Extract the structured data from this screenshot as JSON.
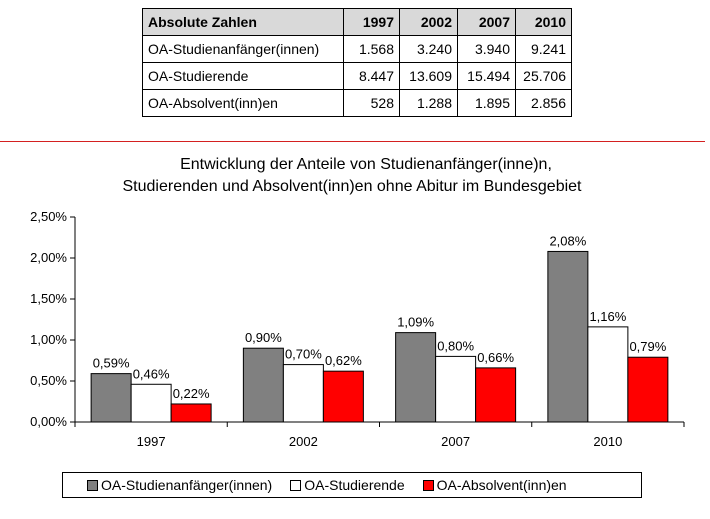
{
  "table": {
    "header": [
      "Absolute Zahlen",
      "1997",
      "2002",
      "2007",
      "2010"
    ],
    "rows": [
      {
        "label": "OA-Studienanfänger(innen)",
        "values": [
          "1.568",
          "3.240",
          "3.940",
          "9.241"
        ]
      },
      {
        "label": "OA-Studierende",
        "values": [
          "8.447",
          "13.609",
          "15.494",
          "25.706"
        ]
      },
      {
        "label": "OA-Absolvent(inn)en",
        "values": [
          "528",
          "1.288",
          "1.895",
          "2.856"
        ]
      }
    ]
  },
  "chart_data": {
    "type": "bar",
    "title": "Entwicklung der  Anteile von Studienanfänger(inne)n,",
    "subtitle": "Studierenden und Absolvent(inn)en ohne Abitur im Bundesgebiet",
    "categories": [
      "1997",
      "2002",
      "2007",
      "2010"
    ],
    "ylim": [
      0,
      2.5
    ],
    "yticks": [
      "0,00%",
      "0,50%",
      "1,00%",
      "1,50%",
      "2,00%",
      "2,50%"
    ],
    "grid": false,
    "legend_position": "bottom",
    "series": [
      {
        "name": "OA-Studienanfänger(innen)",
        "color": "#808080",
        "values": [
          0.59,
          0.9,
          1.09,
          2.08
        ],
        "labels": [
          "0,59%",
          "0,90%",
          "1,09%",
          "2,08%"
        ]
      },
      {
        "name": "OA-Studierende",
        "color": "#ffffff",
        "values": [
          0.46,
          0.7,
          0.8,
          1.16
        ],
        "labels": [
          "0,46%",
          "0,70%",
          "0,80%",
          "1,16%"
        ]
      },
      {
        "name": "OA-Absolvent(inn)en",
        "color": "#ff0000",
        "values": [
          0.22,
          0.62,
          0.66,
          0.79
        ],
        "labels": [
          "0,22%",
          "0,62%",
          "0,66%",
          "0,79%"
        ]
      }
    ]
  }
}
